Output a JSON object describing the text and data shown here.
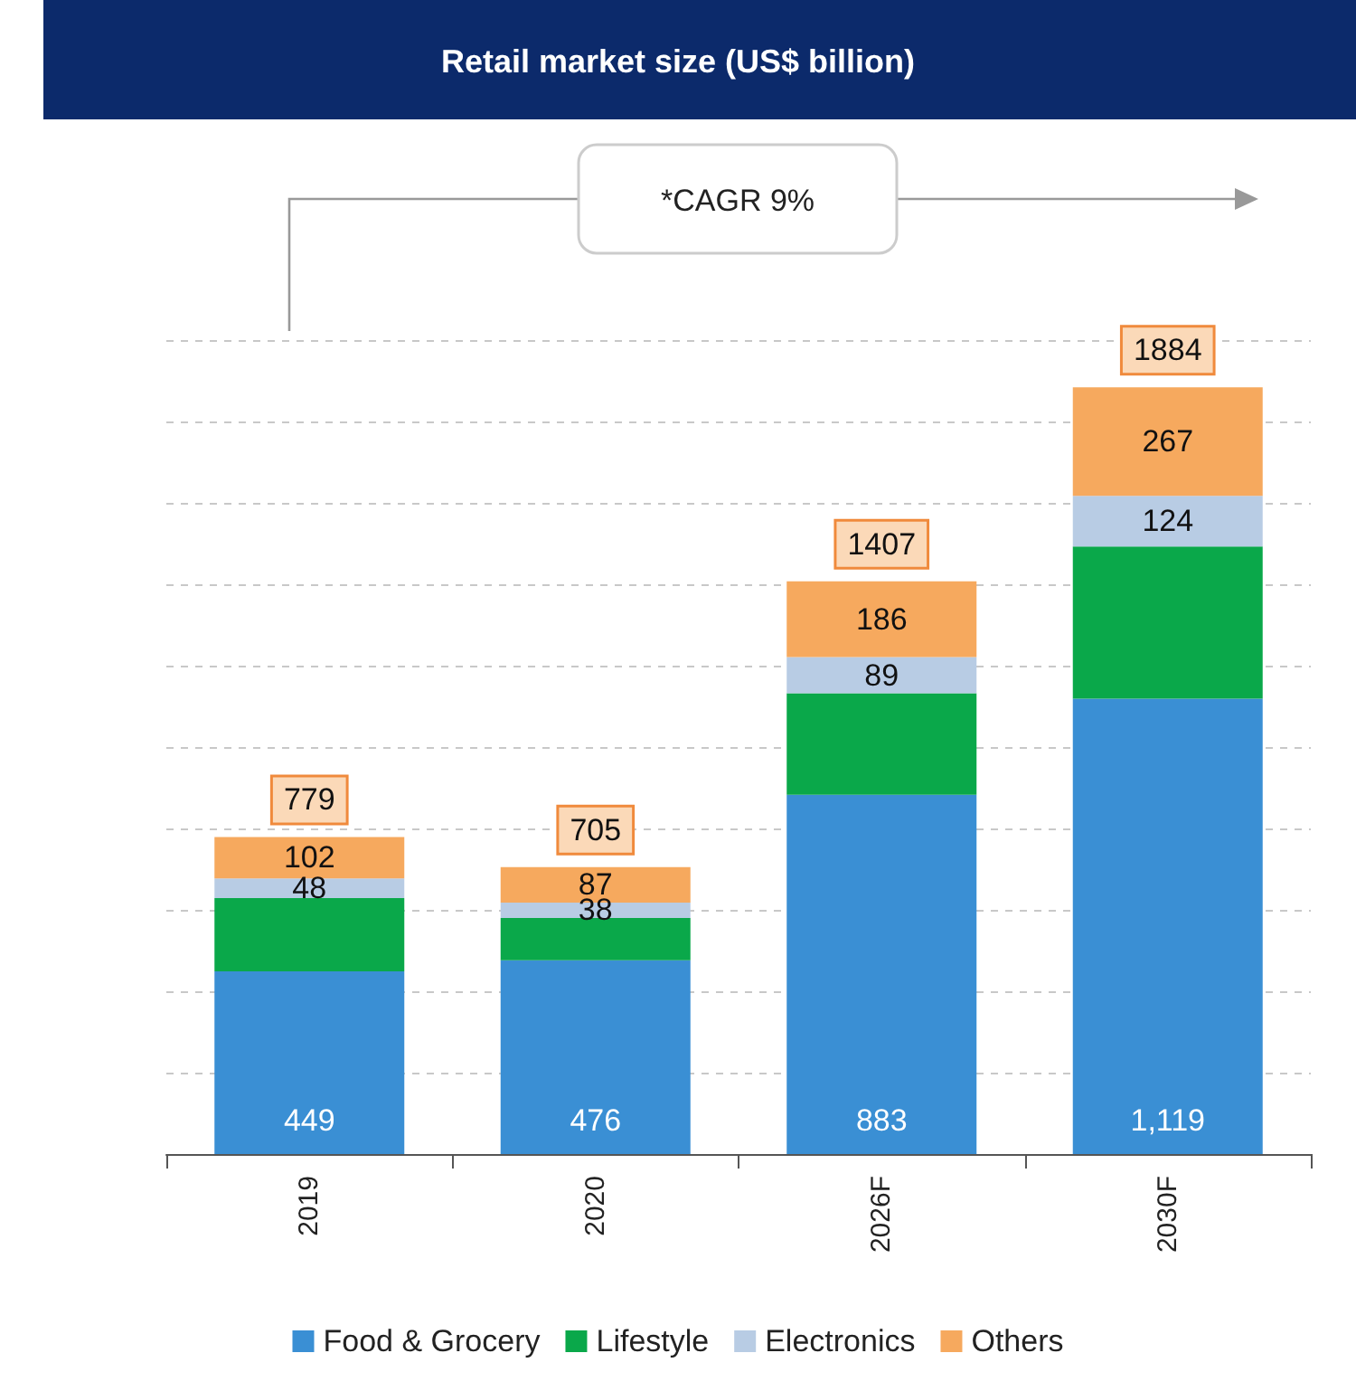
{
  "chart_data": {
    "type": "bar",
    "title": "Retail market size (US$ billion)",
    "categories": [
      "2019",
      "2020",
      "2026F",
      "2030F"
    ],
    "stacked": true,
    "series": [
      {
        "name": "Food & Grocery",
        "color": "#3a8fd4",
        "values": [
          449,
          476,
          883,
          1119
        ],
        "value_labels": [
          "449",
          "476",
          "883",
          "1,119"
        ]
      },
      {
        "name": "Lifestyle",
        "color": "#0aa84a",
        "values": [
          180,
          104,
          249,
          374
        ],
        "value_labels": [
          null,
          null,
          null,
          null
        ]
      },
      {
        "name": "Electronics",
        "color": "#b8cce4",
        "values": [
          48,
          38,
          89,
          124
        ],
        "value_labels": [
          "48",
          "38",
          "89",
          "124"
        ]
      },
      {
        "name": "Others",
        "color": "#f6a95e",
        "values": [
          102,
          87,
          186,
          267
        ],
        "value_labels": [
          "102",
          "87",
          "186",
          "267"
        ]
      }
    ],
    "totals": [
      "779",
      "705",
      "1407",
      "1884"
    ],
    "annotations": [
      "*CAGR 9%"
    ],
    "ylim": [
      0,
      2000
    ],
    "yticks": [
      {
        "value": 0,
        "label": null
      },
      {
        "value": 200,
        "label": null
      },
      {
        "value": 400,
        "label": null
      },
      {
        "value": 600,
        "label": null
      },
      {
        "value": 800,
        "label": null
      },
      {
        "value": 1000,
        "label": null
      },
      {
        "value": 1200,
        "label": null
      },
      {
        "value": 1400,
        "label": null
      },
      {
        "value": 1600,
        "label": null
      },
      {
        "value": 1800,
        "label": null
      },
      {
        "value": 2000,
        "label": null
      }
    ],
    "grid": "y",
    "legend": "bottom",
    "tick_labels": "x"
  }
}
